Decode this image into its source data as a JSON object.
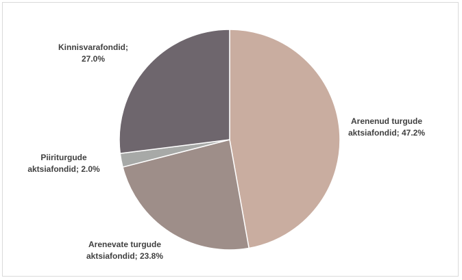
{
  "chart_data": {
    "type": "pie",
    "title": "",
    "start_angle_deg": 0,
    "direction": "clockwise",
    "legend": "none",
    "slices": [
      {
        "category": "Arenenud turgude aktsiafondid",
        "value": 47.2,
        "color": "#c9ada0",
        "label_lines": [
          "Arenenud turgude",
          "aktsiafondid; 47.2%"
        ]
      },
      {
        "category": "Arenevate turgude aktsiafondid",
        "value": 23.8,
        "color": "#9e8e89",
        "label_lines": [
          "Arenevate turgude",
          "aktsiafondid; 23.8%"
        ]
      },
      {
        "category": "Piiriturgude aktsiafondid",
        "value": 2.0,
        "color": "#a7a9a7",
        "label_lines": [
          "Piiriturgude",
          "aktsiafondid; 2.0%"
        ]
      },
      {
        "category": "Kinnisvarafondid",
        "value": 27.0,
        "color": "#6e666d",
        "label_lines": [
          "Kinnisvarafondid;",
          "27.0%"
        ]
      }
    ]
  }
}
